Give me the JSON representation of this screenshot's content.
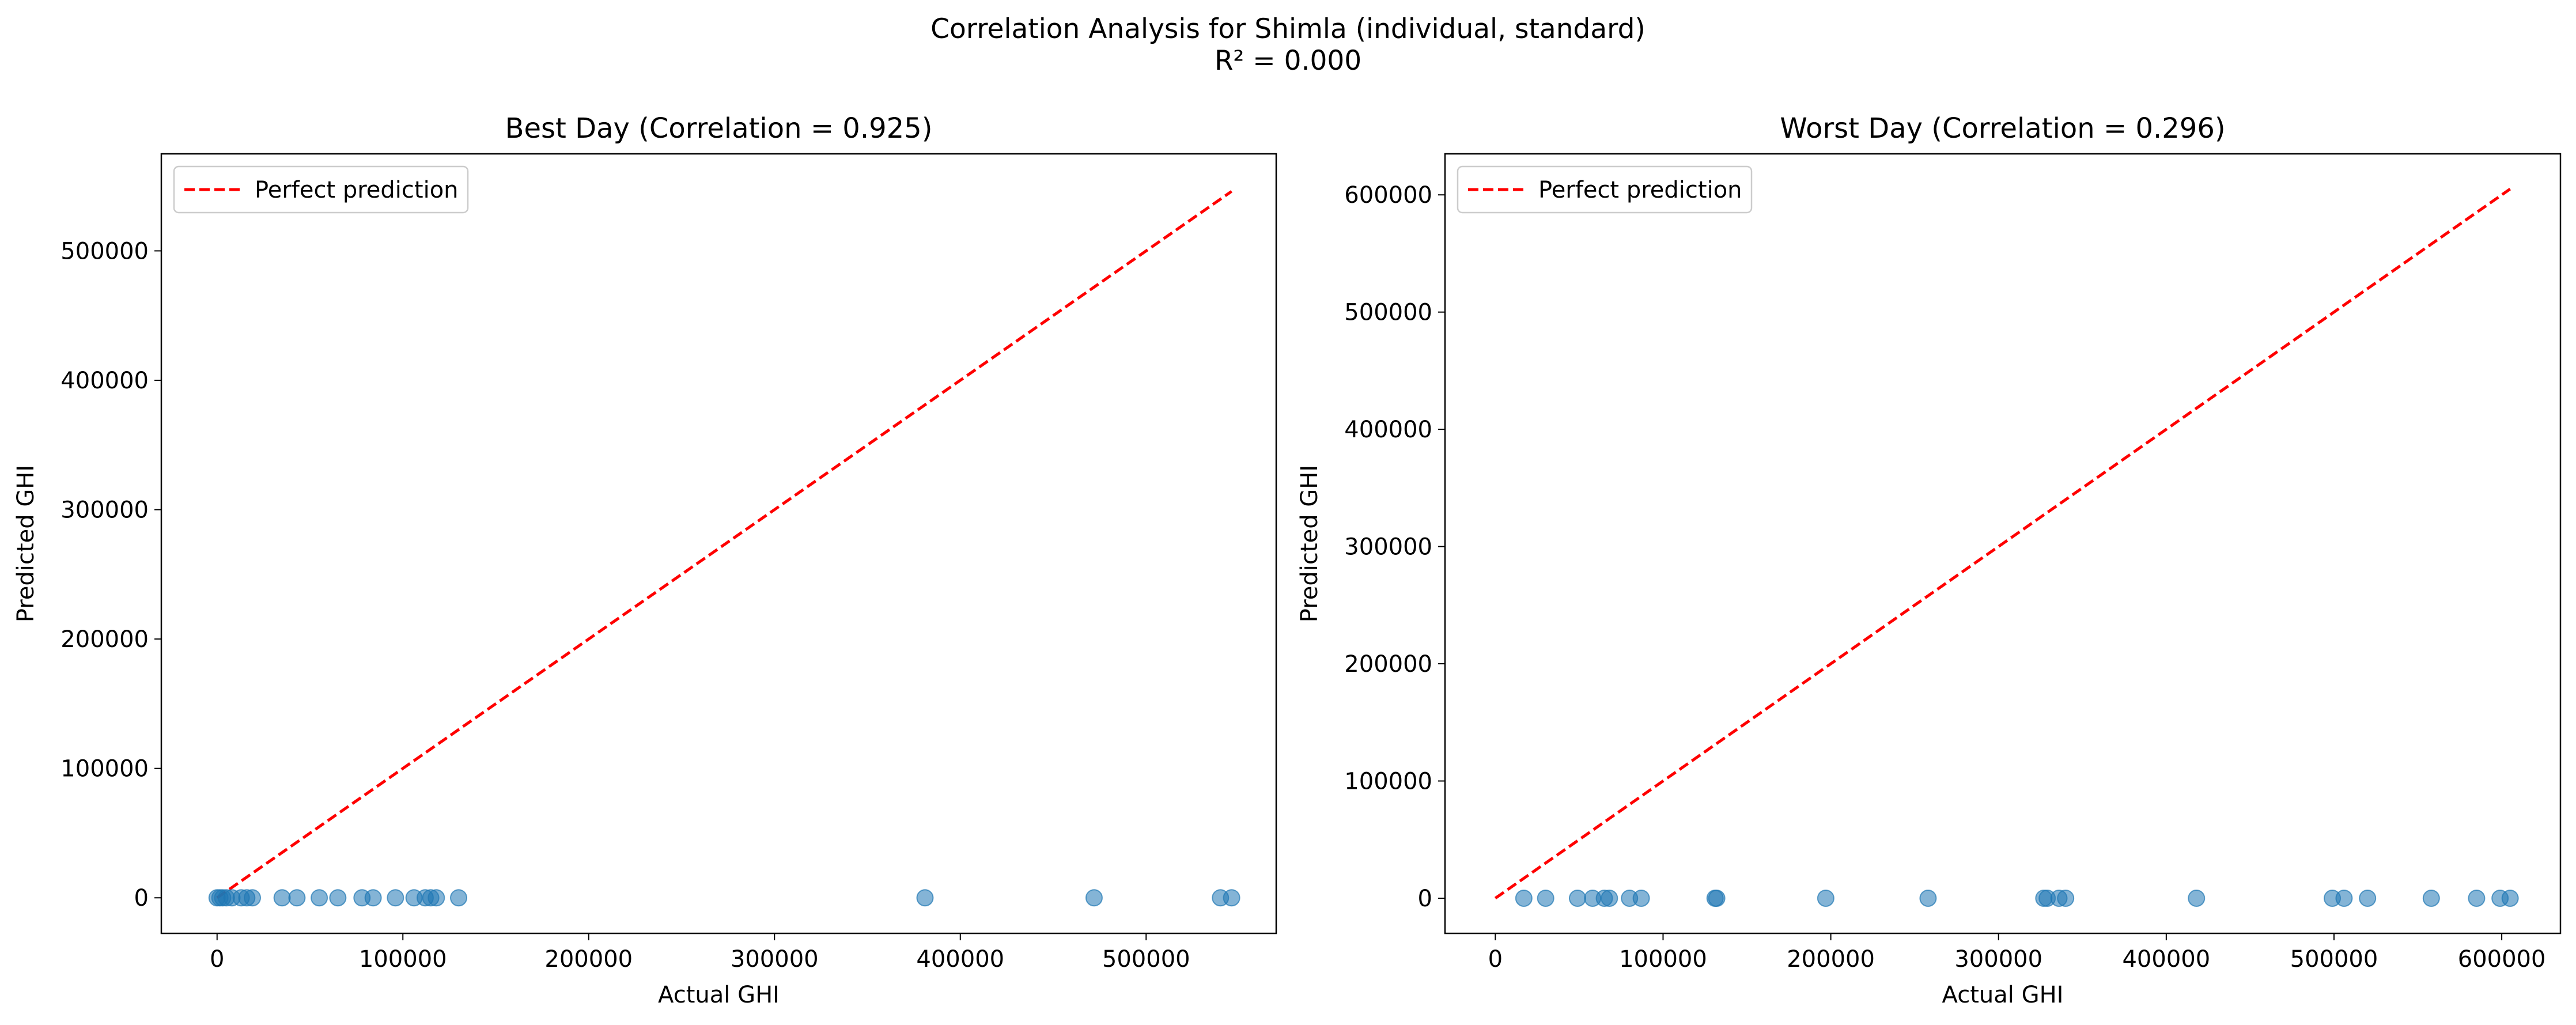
{
  "figure": {
    "title": "Correlation Analysis for Shimla (individual, standard)",
    "subtitle": "R² = 0.000"
  },
  "chart_data": [
    {
      "type": "scatter",
      "title": "Best Day (Correlation = 0.925)",
      "xlabel": "Actual GHI",
      "ylabel": "Predicted GHI",
      "xlim": [
        -30000,
        570000
      ],
      "ylim": [
        -27500,
        575000
      ],
      "xticks": [
        0,
        100000,
        200000,
        300000,
        400000,
        500000
      ],
      "yticks": [
        0,
        100000,
        200000,
        300000,
        400000,
        500000
      ],
      "legend": {
        "position": "upper-left",
        "entries": [
          "Perfect prediction"
        ]
      },
      "reference_line": {
        "name": "Perfect prediction",
        "color": "#ff0000",
        "style": "dashed",
        "points": [
          [
            0,
            0
          ],
          [
            546000,
            546000
          ]
        ]
      },
      "point_color": "#1f77b4",
      "points": [
        {
          "x": 0,
          "y": 0
        },
        {
          "x": 1500,
          "y": 0
        },
        {
          "x": 3000,
          "y": 0
        },
        {
          "x": 5000,
          "y": 0
        },
        {
          "x": 8000,
          "y": 0
        },
        {
          "x": 13000,
          "y": 0
        },
        {
          "x": 16000,
          "y": 0
        },
        {
          "x": 19000,
          "y": 0
        },
        {
          "x": 35000,
          "y": 0
        },
        {
          "x": 43000,
          "y": 0
        },
        {
          "x": 55000,
          "y": 0
        },
        {
          "x": 65000,
          "y": 0
        },
        {
          "x": 78000,
          "y": 0
        },
        {
          "x": 84000,
          "y": 0
        },
        {
          "x": 96000,
          "y": 0
        },
        {
          "x": 106000,
          "y": 0
        },
        {
          "x": 112000,
          "y": 0
        },
        {
          "x": 115000,
          "y": 0
        },
        {
          "x": 118000,
          "y": 0
        },
        {
          "x": 130000,
          "y": 0
        },
        {
          "x": 381000,
          "y": 0
        },
        {
          "x": 472000,
          "y": 0
        },
        {
          "x": 540000,
          "y": 0
        },
        {
          "x": 546000,
          "y": 0
        }
      ]
    },
    {
      "type": "scatter",
      "title": "Worst Day (Correlation = 0.296)",
      "xlabel": "Actual GHI",
      "ylabel": "Predicted GHI",
      "xlim": [
        -30000,
        635000
      ],
      "ylim": [
        -30000,
        635000
      ],
      "xticks": [
        0,
        100000,
        200000,
        300000,
        400000,
        500000,
        600000
      ],
      "yticks": [
        0,
        100000,
        200000,
        300000,
        400000,
        500000,
        600000
      ],
      "legend": {
        "position": "upper-left",
        "entries": [
          "Perfect prediction"
        ]
      },
      "reference_line": {
        "name": "Perfect prediction",
        "color": "#ff0000",
        "style": "dashed",
        "points": [
          [
            0,
            0
          ],
          [
            605000,
            605000
          ]
        ]
      },
      "point_color": "#1f77b4",
      "points": [
        {
          "x": 17000,
          "y": 0
        },
        {
          "x": 30000,
          "y": 0
        },
        {
          "x": 49000,
          "y": 0
        },
        {
          "x": 58000,
          "y": 0
        },
        {
          "x": 65000,
          "y": 0
        },
        {
          "x": 68000,
          "y": 0
        },
        {
          "x": 80000,
          "y": 0
        },
        {
          "x": 87000,
          "y": 0
        },
        {
          "x": 131000,
          "y": 0
        },
        {
          "x": 132000,
          "y": 0
        },
        {
          "x": 197000,
          "y": 0
        },
        {
          "x": 258000,
          "y": 0
        },
        {
          "x": 327000,
          "y": 0
        },
        {
          "x": 329000,
          "y": 0
        },
        {
          "x": 336000,
          "y": 0
        },
        {
          "x": 340000,
          "y": 0
        },
        {
          "x": 418000,
          "y": 0
        },
        {
          "x": 499000,
          "y": 0
        },
        {
          "x": 506000,
          "y": 0
        },
        {
          "x": 520000,
          "y": 0
        },
        {
          "x": 558000,
          "y": 0
        },
        {
          "x": 585000,
          "y": 0
        },
        {
          "x": 599000,
          "y": 0
        },
        {
          "x": 605000,
          "y": 0
        }
      ]
    }
  ]
}
